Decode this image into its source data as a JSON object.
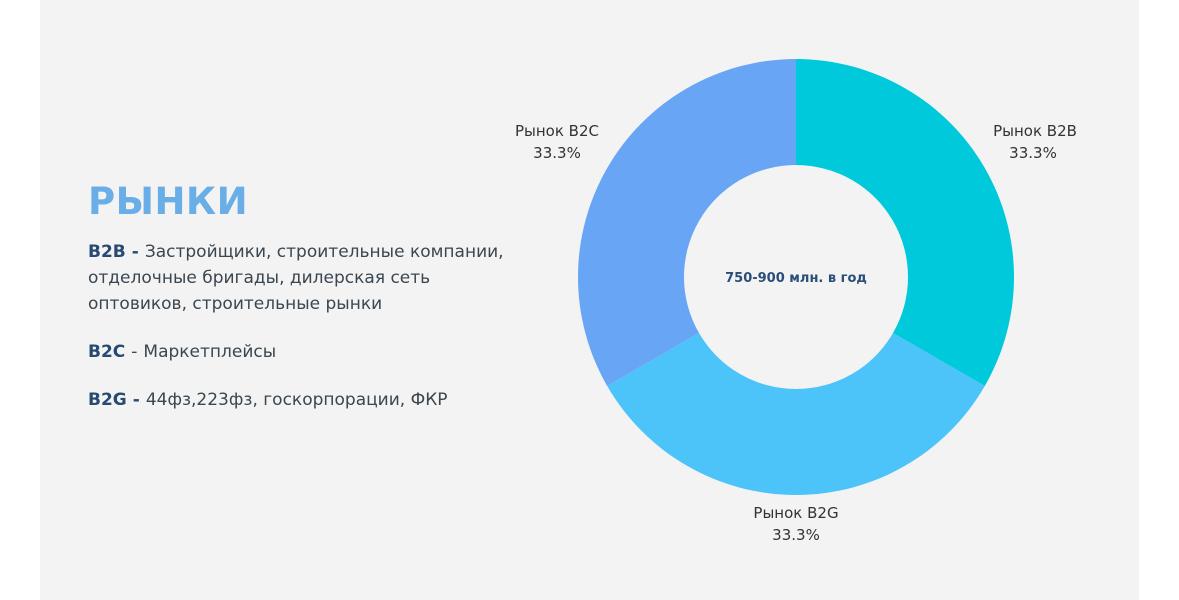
{
  "heading": "РЫНКИ",
  "segments": [
    {
      "name": "B2B",
      "sep": "-",
      "desc": "Застройщики, строительные компании, отделочные бригады, дилерская сеть оптовиков, строительные рынки"
    },
    {
      "name": "B2C",
      "sep": "-",
      "desc": "Маркетплейсы"
    },
    {
      "name": "B2G",
      "sep": "-",
      "desc": "44фз,223фз, госкорпорации, ФКР"
    }
  ],
  "chart_data": {
    "type": "pie",
    "title": "",
    "center_label": "750-900 млн. в год",
    "slices": [
      {
        "label": "Рынок B2B",
        "value": 33.3,
        "value_label": "33.3%",
        "color": "#00c9dc"
      },
      {
        "label": "Рынок B2G",
        "value": 33.3,
        "value_label": "33.3%",
        "color": "#4cc3f9"
      },
      {
        "label": "Рынок B2C",
        "value": 33.3,
        "value_label": "33.3%",
        "color": "#68a6f5"
      }
    ]
  }
}
